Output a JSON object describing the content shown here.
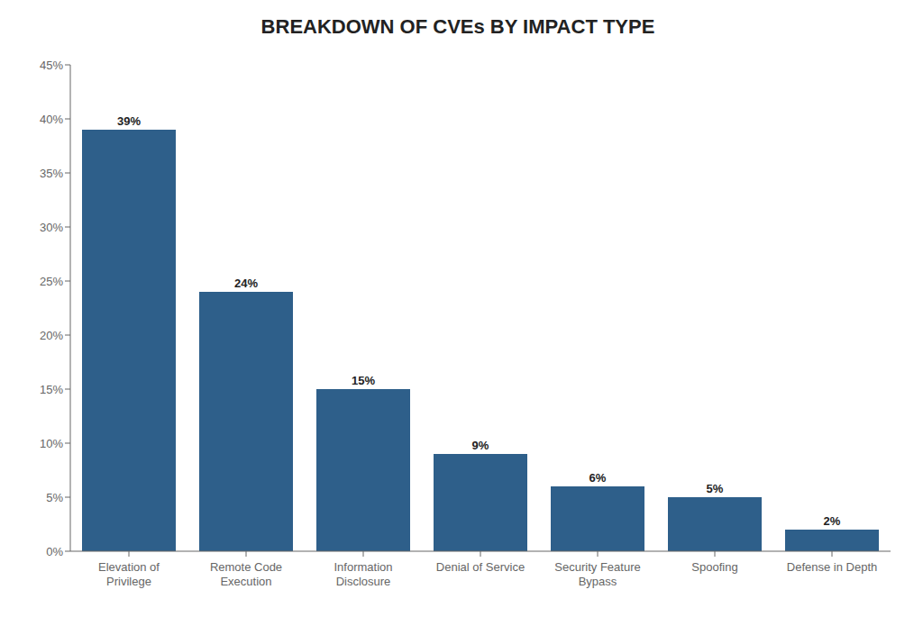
{
  "chart_data": {
    "type": "bar",
    "title": "BREAKDOWN OF CVEs BY IMPACT TYPE",
    "categories": [
      "Elevation of\nPrivilege",
      "Remote Code\nExecution",
      "Information\nDisclosure",
      "Denial of Service",
      "Security Feature\nBypass",
      "Spoofing",
      "Defense in Depth"
    ],
    "values": [
      39,
      24,
      15,
      9,
      6,
      5,
      2
    ],
    "value_labels": [
      "39%",
      "24%",
      "15%",
      "9%",
      "6%",
      "5%",
      "2%"
    ],
    "data_labels": true,
    "color": "#2E5F8A",
    "ylim": [
      0,
      45
    ],
    "yticks": [
      {
        "value": 0,
        "label": "0%"
      },
      {
        "value": 5,
        "label": "5%"
      },
      {
        "value": 10,
        "label": "10%"
      },
      {
        "value": 15,
        "label": "15%"
      },
      {
        "value": 20,
        "label": "20%"
      },
      {
        "value": 25,
        "label": "25%"
      },
      {
        "value": 30,
        "label": "30%"
      },
      {
        "value": 35,
        "label": "35%"
      },
      {
        "value": 40,
        "label": "40%"
      },
      {
        "value": 45,
        "label": "45%"
      }
    ],
    "grid": false
  }
}
